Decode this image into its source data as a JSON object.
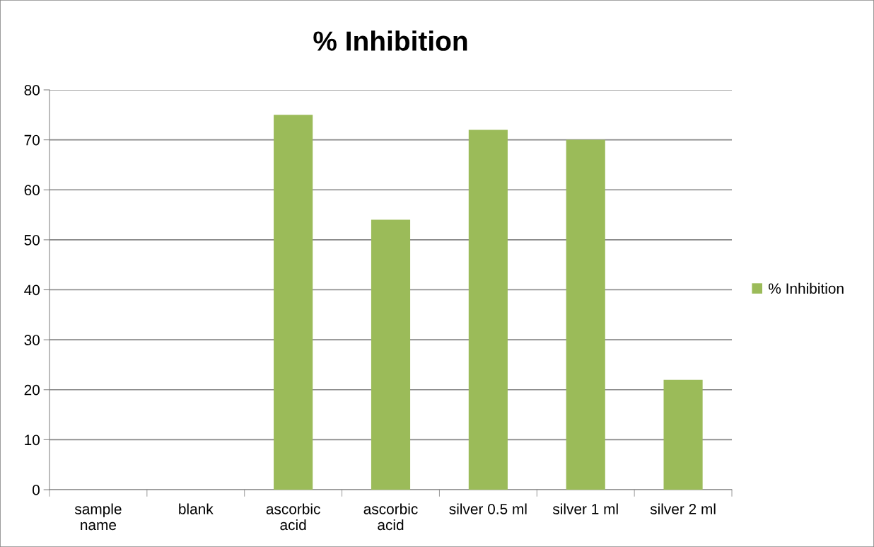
{
  "chart_data": {
    "type": "bar",
    "title": "% Inhibition",
    "categories": [
      "sample\nname",
      "blank",
      "ascorbic\nacid",
      "ascorbic\nacid",
      "silver 0.5 ml",
      "silver 1 ml",
      "silver 2 ml"
    ],
    "series": [
      {
        "name": "% Inhibition",
        "color": "#9bbb59",
        "values": [
          null,
          null,
          75,
          54,
          72,
          70,
          22
        ]
      }
    ],
    "ylim": [
      0,
      80
    ],
    "yticks": [
      0,
      10,
      20,
      30,
      40,
      50,
      60,
      70,
      80
    ],
    "grid": "y",
    "legend": "right"
  }
}
